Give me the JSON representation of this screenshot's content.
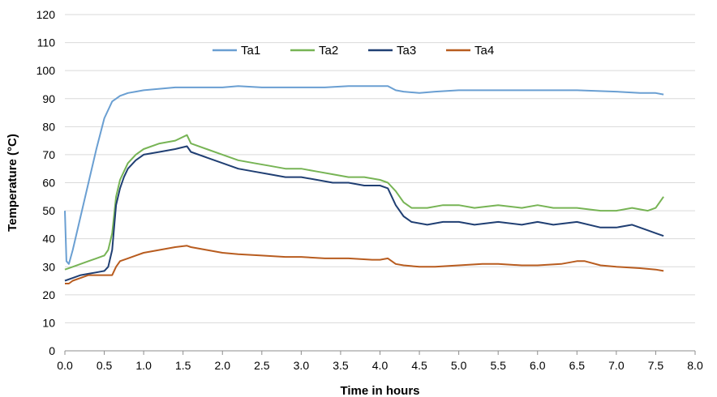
{
  "chart_data": {
    "type": "line",
    "title": "",
    "xlabel": "Time in hours",
    "ylabel": "Temperature (°C)",
    "xlim": [
      0,
      8
    ],
    "ylim": [
      0,
      120
    ],
    "xticks": [
      "0.0",
      "0.5",
      "1.0",
      "1.5",
      "2.0",
      "2.5",
      "3.0",
      "3.5",
      "4.0",
      "4.5",
      "5.0",
      "5.5",
      "6.0",
      "6.5",
      "7.0",
      "7.5",
      "8.0"
    ],
    "yticks": [
      "0",
      "10",
      "20",
      "30",
      "40",
      "50",
      "60",
      "70",
      "80",
      "90",
      "100",
      "110",
      "120"
    ],
    "grid": "horizontal",
    "legend_position": "top",
    "series": [
      {
        "name": "Ta1",
        "color": "#6a9fd2",
        "x": [
          0,
          0.02,
          0.05,
          0.1,
          0.2,
          0.3,
          0.4,
          0.5,
          0.6,
          0.65,
          0.7,
          0.8,
          0.9,
          1.0,
          1.2,
          1.4,
          1.6,
          1.8,
          2.0,
          2.2,
          2.5,
          2.8,
          3.0,
          3.3,
          3.6,
          3.8,
          4.0,
          4.1,
          4.2,
          4.3,
          4.5,
          4.7,
          5.0,
          5.5,
          6.0,
          6.5,
          7.0,
          7.3,
          7.5,
          7.6
        ],
        "y": [
          50,
          32,
          31,
          36,
          48,
          60,
          72,
          83,
          89,
          90,
          91,
          92,
          92.5,
          93,
          93.5,
          94,
          94,
          94,
          94,
          94.5,
          94,
          94,
          94,
          94,
          94.5,
          94.5,
          94.5,
          94.5,
          93,
          92.5,
          92,
          92.5,
          93,
          93,
          93,
          93,
          92.5,
          92,
          92,
          91.5
        ]
      },
      {
        "name": "Ta2",
        "color": "#77b455",
        "x": [
          0,
          0.1,
          0.2,
          0.3,
          0.4,
          0.5,
          0.55,
          0.6,
          0.65,
          0.7,
          0.75,
          0.8,
          0.9,
          1.0,
          1.2,
          1.4,
          1.55,
          1.6,
          1.8,
          2.0,
          2.2,
          2.4,
          2.6,
          2.8,
          3.0,
          3.2,
          3.4,
          3.6,
          3.8,
          4.0,
          4.1,
          4.2,
          4.3,
          4.4,
          4.6,
          4.8,
          5.0,
          5.2,
          5.5,
          5.8,
          6.0,
          6.2,
          6.5,
          6.8,
          7.0,
          7.2,
          7.4,
          7.5,
          7.6
        ],
        "y": [
          29,
          30,
          31,
          32,
          33,
          34,
          36,
          42,
          55,
          61,
          64,
          67,
          70,
          72,
          74,
          75,
          77,
          74,
          72,
          70,
          68,
          67,
          66,
          65,
          65,
          64,
          63,
          62,
          62,
          61,
          60,
          57,
          53,
          51,
          51,
          52,
          52,
          51,
          52,
          51,
          52,
          51,
          51,
          50,
          50,
          51,
          50,
          51,
          55
        ]
      },
      {
        "name": "Ta3",
        "color": "#203f73",
        "x": [
          0,
          0.1,
          0.2,
          0.3,
          0.4,
          0.5,
          0.55,
          0.6,
          0.65,
          0.7,
          0.75,
          0.8,
          0.9,
          1.0,
          1.2,
          1.4,
          1.55,
          1.6,
          1.8,
          2.0,
          2.2,
          2.4,
          2.6,
          2.8,
          3.0,
          3.2,
          3.4,
          3.6,
          3.8,
          4.0,
          4.1,
          4.2,
          4.3,
          4.4,
          4.6,
          4.8,
          5.0,
          5.2,
          5.5,
          5.8,
          6.0,
          6.2,
          6.5,
          6.8,
          7.0,
          7.2,
          7.4,
          7.5,
          7.6
        ],
        "y": [
          25,
          26,
          27,
          27.5,
          28,
          28.5,
          30,
          36,
          52,
          58,
          62,
          65,
          68,
          70,
          71,
          72,
          73,
          71,
          69,
          67,
          65,
          64,
          63,
          62,
          62,
          61,
          60,
          60,
          59,
          59,
          58,
          52,
          48,
          46,
          45,
          46,
          46,
          45,
          46,
          45,
          46,
          45,
          46,
          44,
          44,
          45,
          43,
          42,
          41
        ]
      },
      {
        "name": "Ta4",
        "color": "#b85c1f",
        "x": [
          0,
          0.05,
          0.1,
          0.2,
          0.3,
          0.4,
          0.5,
          0.6,
          0.65,
          0.7,
          0.8,
          0.9,
          1.0,
          1.2,
          1.4,
          1.55,
          1.6,
          1.8,
          2.0,
          2.2,
          2.5,
          2.8,
          3.0,
          3.3,
          3.6,
          3.9,
          4.0,
          4.1,
          4.2,
          4.3,
          4.5,
          4.7,
          5.0,
          5.3,
          5.5,
          5.8,
          6.0,
          6.3,
          6.5,
          6.6,
          6.8,
          7.0,
          7.3,
          7.5,
          7.6
        ],
        "y": [
          24,
          24,
          25,
          26,
          27,
          27,
          27,
          27,
          30,
          32,
          33,
          34,
          35,
          36,
          37,
          37.5,
          37,
          36,
          35,
          34.5,
          34,
          33.5,
          33.5,
          33,
          33,
          32.5,
          32.5,
          33,
          31,
          30.5,
          30,
          30,
          30.5,
          31,
          31,
          30.5,
          30.5,
          31,
          32,
          32,
          30.5,
          30,
          29.5,
          29,
          28.5
        ]
      }
    ]
  }
}
